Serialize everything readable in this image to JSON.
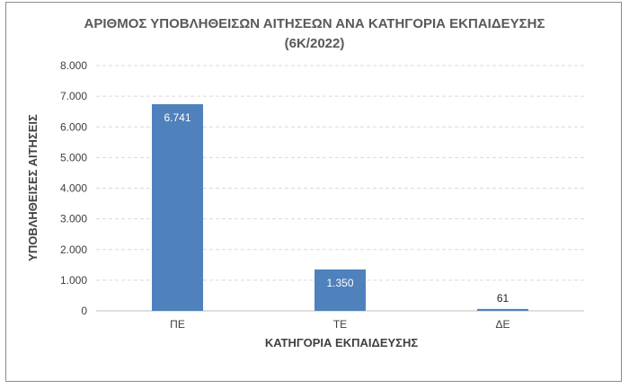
{
  "chart_data": {
    "type": "bar",
    "title_line1": "ΑΡΙΘΜΟΣ ΥΠΟΒΛΗΘΕΙΣΩΝ ΑΙΤΗΣΕΩΝ ΑΝΑ ΚΑΤΗΓΟΡΙΑ ΕΚΠΑΙΔΕΥΣΗΣ",
    "title_line2": "(6Κ/2022)",
    "xlabel": "ΚΑΤΗΓΟΡΙΑ ΕΚΠΑΙΔΕΥΣΗΣ",
    "ylabel": "ΥΠΟΒΛΗΘΕΙΣΕΣ ΑΙΤΗΣΕΙΣ",
    "categories": [
      "ΠΕ",
      "ΤΕ",
      "ΔΕ"
    ],
    "values": [
      6741,
      1350,
      61
    ],
    "value_labels": [
      "6.741",
      "1.350",
      "61"
    ],
    "ylim": [
      0,
      8000
    ],
    "yticks": [
      0,
      1000,
      2000,
      3000,
      4000,
      5000,
      6000,
      7000,
      8000
    ],
    "ytick_labels": [
      "0",
      "1.000",
      "2.000",
      "3.000",
      "4.000",
      "5.000",
      "6.000",
      "7.000",
      "8.000"
    ],
    "grid": true,
    "bar_color": "#4f81bd",
    "grid_color": "#d9d9d9"
  }
}
